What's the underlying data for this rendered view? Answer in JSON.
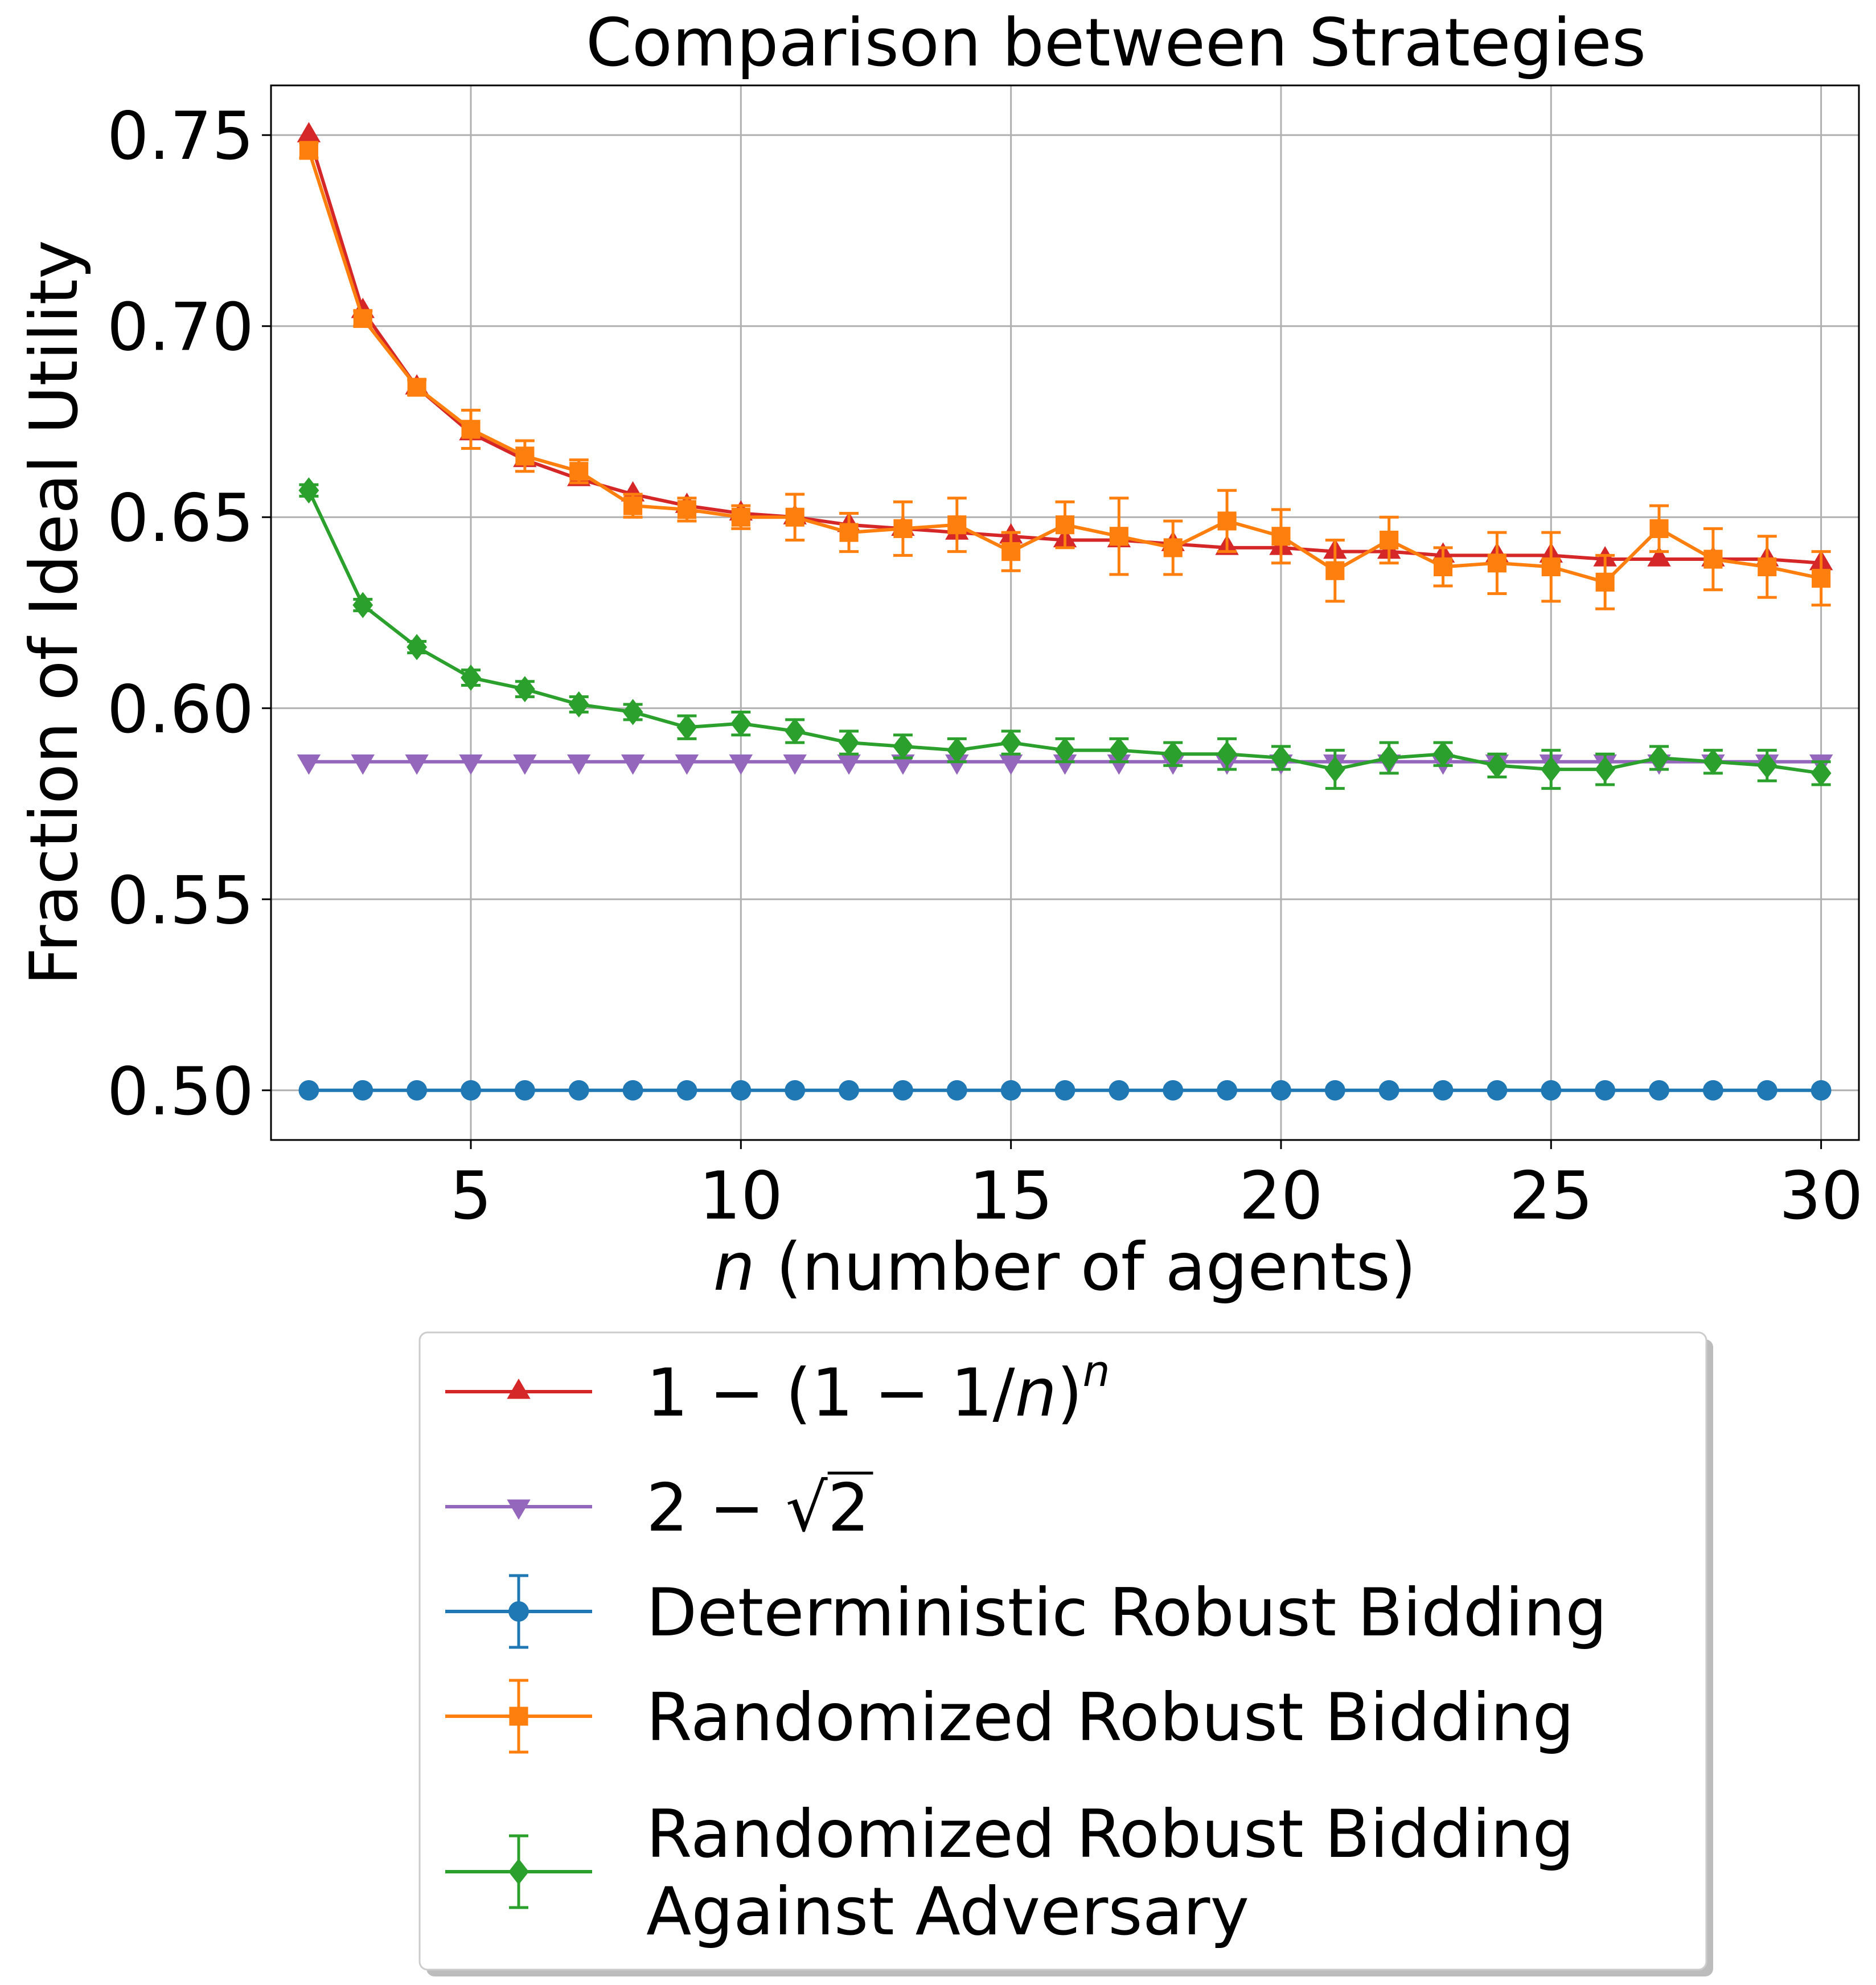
{
  "chart_data": {
    "type": "line",
    "title": "Comparison between Strategies",
    "xlabel": {
      "var": "n",
      "rest": " (number of agents)"
    },
    "ylabel": "Fraction of Ideal Utility",
    "xlim": [
      1.3,
      30.7
    ],
    "ylim": [
      0.487,
      0.763
    ],
    "x_ticks": [
      5,
      10,
      15,
      20,
      25,
      30
    ],
    "x_tick_labels": [
      "5",
      "10",
      "15",
      "20",
      "25",
      "30"
    ],
    "y_ticks": [
      0.5,
      0.55,
      0.6,
      0.65,
      0.7,
      0.75
    ],
    "y_tick_labels": [
      "0.50",
      "0.55",
      "0.60",
      "0.65",
      "0.70",
      "0.75"
    ],
    "grid": true,
    "legend_position": "below plot, centered",
    "x": [
      2,
      3,
      4,
      5,
      6,
      7,
      8,
      9,
      10,
      11,
      12,
      13,
      14,
      15,
      16,
      17,
      18,
      19,
      20,
      21,
      22,
      23,
      24,
      25,
      26,
      27,
      28,
      29,
      30
    ],
    "series": [
      {
        "name": "1 − (1 − 1/n)^n",
        "legend": {
          "pre": "1 − (1 − 1/",
          "var": "n",
          "mid": ")",
          "sup": "n"
        },
        "color": "#d62728",
        "marker": "triangle-up",
        "values": [
          0.75,
          0.704,
          0.684,
          0.672,
          0.665,
          0.66,
          0.656,
          0.653,
          0.651,
          0.65,
          0.648,
          0.647,
          0.646,
          0.645,
          0.644,
          0.644,
          0.643,
          0.642,
          0.642,
          0.641,
          0.641,
          0.64,
          0.64,
          0.64,
          0.639,
          0.639,
          0.639,
          0.639,
          0.638
        ]
      },
      {
        "name": "2 − √2",
        "legend": {
          "pre": "2 − ",
          "radical": "√",
          "arg": "2"
        },
        "color": "#9467bd",
        "marker": "triangle-down",
        "values": [
          0.586,
          0.586,
          0.586,
          0.586,
          0.586,
          0.586,
          0.586,
          0.586,
          0.586,
          0.586,
          0.586,
          0.586,
          0.586,
          0.586,
          0.586,
          0.586,
          0.586,
          0.586,
          0.586,
          0.586,
          0.586,
          0.586,
          0.586,
          0.586,
          0.586,
          0.586,
          0.586,
          0.586,
          0.586
        ]
      },
      {
        "name": "Deterministic Robust Bidding",
        "legend_lines": [
          "Deterministic Robust Bidding"
        ],
        "color": "#1f77b4",
        "marker": "circle",
        "errorbars": true,
        "values": [
          0.5,
          0.5,
          0.5,
          0.5,
          0.5,
          0.5,
          0.5,
          0.5,
          0.5,
          0.5,
          0.5,
          0.5,
          0.5,
          0.5,
          0.5,
          0.5,
          0.5,
          0.5,
          0.5,
          0.5,
          0.5,
          0.5,
          0.5,
          0.5,
          0.5,
          0.5,
          0.5,
          0.5,
          0.5
        ],
        "errors": [
          0.0003,
          0.0003,
          0.0003,
          0.0003,
          0.0003,
          0.0003,
          0.0003,
          0.0003,
          0.0003,
          0.0003,
          0.0003,
          0.0003,
          0.0003,
          0.0003,
          0.0003,
          0.0003,
          0.0003,
          0.0003,
          0.0003,
          0.0003,
          0.0003,
          0.0003,
          0.0003,
          0.0003,
          0.0003,
          0.0003,
          0.0003,
          0.0003,
          0.0003
        ]
      },
      {
        "name": "Randomized Robust Bidding",
        "legend_lines": [
          "Randomized Robust Bidding"
        ],
        "color": "#ff7f0e",
        "marker": "square",
        "errorbars": true,
        "values": [
          0.746,
          0.702,
          0.684,
          0.673,
          0.666,
          0.662,
          0.653,
          0.652,
          0.65,
          0.65,
          0.646,
          0.647,
          0.648,
          0.641,
          0.648,
          0.645,
          0.642,
          0.649,
          0.645,
          0.636,
          0.644,
          0.637,
          0.638,
          0.637,
          0.633,
          0.647,
          0.639,
          0.637,
          0.634
        ],
        "errors": [
          0.002,
          0.002,
          0.002,
          0.005,
          0.004,
          0.003,
          0.003,
          0.003,
          0.003,
          0.006,
          0.005,
          0.007,
          0.007,
          0.005,
          0.006,
          0.01,
          0.007,
          0.008,
          0.007,
          0.008,
          0.006,
          0.005,
          0.008,
          0.009,
          0.007,
          0.006,
          0.008,
          0.008,
          0.007
        ]
      },
      {
        "name": "Randomized Robust Bidding Against Adversary",
        "legend_lines": [
          "Randomized Robust Bidding",
          "Against Adversary"
        ],
        "color": "#2ca02c",
        "marker": "diamond",
        "errorbars": true,
        "values": [
          0.657,
          0.627,
          0.616,
          0.608,
          0.605,
          0.601,
          0.599,
          0.595,
          0.596,
          0.594,
          0.591,
          0.59,
          0.589,
          0.591,
          0.589,
          0.589,
          0.588,
          0.588,
          0.587,
          0.584,
          0.587,
          0.588,
          0.585,
          0.584,
          0.584,
          0.587,
          0.586,
          0.585,
          0.583
        ],
        "errors": [
          0.0015,
          0.0015,
          0.0015,
          0.002,
          0.002,
          0.002,
          0.002,
          0.003,
          0.003,
          0.003,
          0.003,
          0.003,
          0.003,
          0.003,
          0.003,
          0.003,
          0.003,
          0.004,
          0.003,
          0.005,
          0.004,
          0.003,
          0.003,
          0.005,
          0.004,
          0.003,
          0.003,
          0.004,
          0.003
        ]
      }
    ]
  }
}
